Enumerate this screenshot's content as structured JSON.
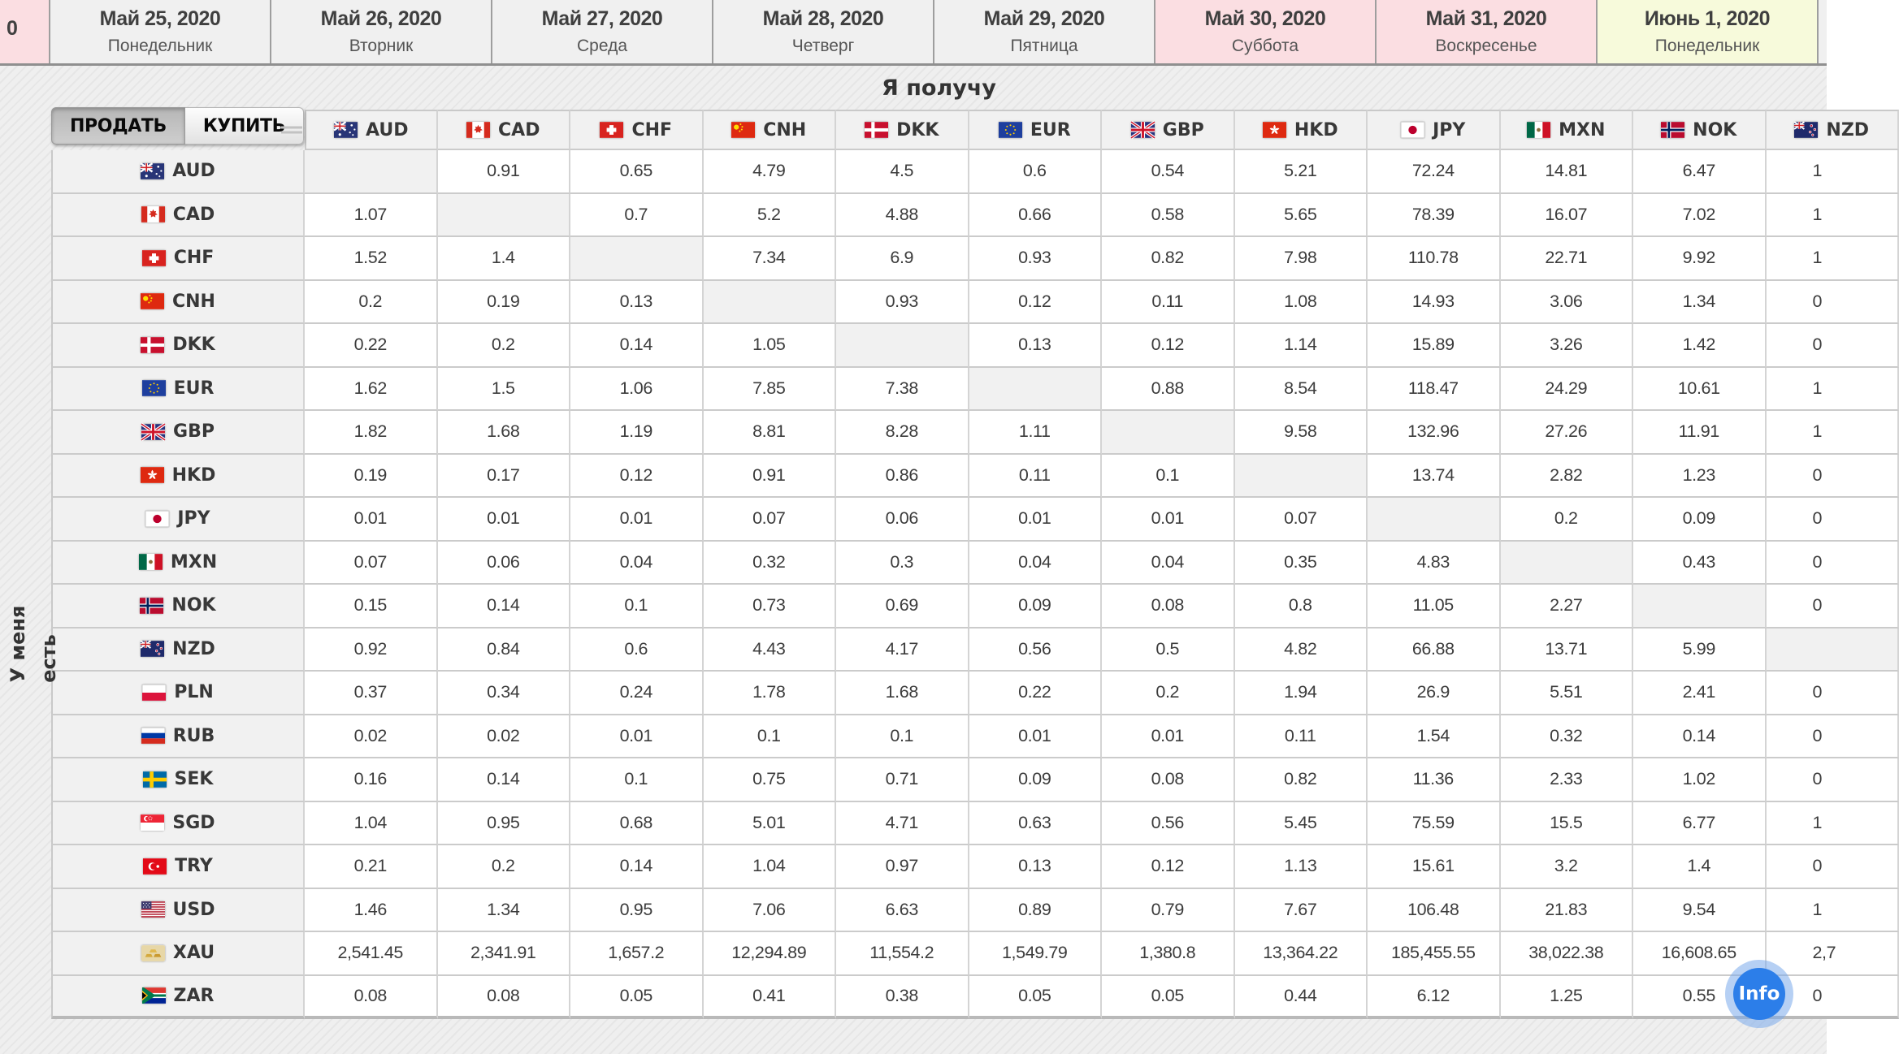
{
  "date_bar": {
    "cells": [
      {
        "date": "0",
        "weekday": "",
        "type": "cut-weekend"
      },
      {
        "date": "Май 25, 2020",
        "weekday": "Понедельник",
        "type": "normal"
      },
      {
        "date": "Май 26, 2020",
        "weekday": "Вторник",
        "type": "normal"
      },
      {
        "date": "Май 27, 2020",
        "weekday": "Среда",
        "type": "normal"
      },
      {
        "date": "Май 28, 2020",
        "weekday": "Четверг",
        "type": "normal"
      },
      {
        "date": "Май 29, 2020",
        "weekday": "Пятница",
        "type": "normal"
      },
      {
        "date": "Май 30, 2020",
        "weekday": "Суббота",
        "type": "weekend"
      },
      {
        "date": "Май 31, 2020",
        "weekday": "Воскресенье",
        "type": "weekend"
      },
      {
        "date": "Июнь 1, 2020",
        "weekday": "Понедельник",
        "type": "today"
      },
      {
        "date": "",
        "weekday": "",
        "type": "cut-next"
      }
    ]
  },
  "axis": {
    "receive_label": "Я получу",
    "have_label_line1": "У меня",
    "have_label_line2": "есть"
  },
  "controls": {
    "sell_label": "ПРОДАТЬ",
    "buy_label": "КУПИТЬ",
    "active": "ПРОДАТЬ"
  },
  "info_button": {
    "label": "Info"
  },
  "colors": {
    "weekend_pink": "#fbdee2",
    "today_yellow": "#f7fadb",
    "info_blue": "#2c7ee9",
    "grid_gray": "#f1f1f1"
  },
  "table": {
    "columns": [
      "AUD",
      "CAD",
      "CHF",
      "CNH",
      "DKK",
      "EUR",
      "GBP",
      "HKD",
      "JPY",
      "MXN",
      "NOK"
    ],
    "clipped_column": "NZD",
    "rows": [
      {
        "code": "AUD",
        "values": [
          null,
          "0.91",
          "0.65",
          "4.79",
          "4.5",
          "0.6",
          "0.54",
          "5.21",
          "72.24",
          "14.81",
          "6.47"
        ],
        "clipped": "1"
      },
      {
        "code": "CAD",
        "values": [
          "1.07",
          null,
          "0.7",
          "5.2",
          "4.88",
          "0.66",
          "0.58",
          "5.65",
          "78.39",
          "16.07",
          "7.02"
        ],
        "clipped": "1"
      },
      {
        "code": "CHF",
        "values": [
          "1.52",
          "1.4",
          null,
          "7.34",
          "6.9",
          "0.93",
          "0.82",
          "7.98",
          "110.78",
          "22.71",
          "9.92"
        ],
        "clipped": "1"
      },
      {
        "code": "CNH",
        "values": [
          "0.2",
          "0.19",
          "0.13",
          null,
          "0.93",
          "0.12",
          "0.11",
          "1.08",
          "14.93",
          "3.06",
          "1.34"
        ],
        "clipped": "0"
      },
      {
        "code": "DKK",
        "values": [
          "0.22",
          "0.2",
          "0.14",
          "1.05",
          null,
          "0.13",
          "0.12",
          "1.14",
          "15.89",
          "3.26",
          "1.42"
        ],
        "clipped": "0"
      },
      {
        "code": "EUR",
        "values": [
          "1.62",
          "1.5",
          "1.06",
          "7.85",
          "7.38",
          null,
          "0.88",
          "8.54",
          "118.47",
          "24.29",
          "10.61"
        ],
        "clipped": "1"
      },
      {
        "code": "GBP",
        "values": [
          "1.82",
          "1.68",
          "1.19",
          "8.81",
          "8.28",
          "1.11",
          null,
          "9.58",
          "132.96",
          "27.26",
          "11.91"
        ],
        "clipped": "1"
      },
      {
        "code": "HKD",
        "values": [
          "0.19",
          "0.17",
          "0.12",
          "0.91",
          "0.86",
          "0.11",
          "0.1",
          null,
          "13.74",
          "2.82",
          "1.23"
        ],
        "clipped": "0"
      },
      {
        "code": "JPY",
        "values": [
          "0.01",
          "0.01",
          "0.01",
          "0.07",
          "0.06",
          "0.01",
          "0.01",
          "0.07",
          null,
          "0.2",
          "0.09"
        ],
        "clipped": "0"
      },
      {
        "code": "MXN",
        "values": [
          "0.07",
          "0.06",
          "0.04",
          "0.32",
          "0.3",
          "0.04",
          "0.04",
          "0.35",
          "4.83",
          null,
          "0.43"
        ],
        "clipped": "0"
      },
      {
        "code": "NOK",
        "values": [
          "0.15",
          "0.14",
          "0.1",
          "0.73",
          "0.69",
          "0.09",
          "0.08",
          "0.8",
          "11.05",
          "2.27",
          null
        ],
        "clipped": "0"
      },
      {
        "code": "NZD",
        "values": [
          "0.92",
          "0.84",
          "0.6",
          "4.43",
          "4.17",
          "0.56",
          "0.5",
          "4.82",
          "66.88",
          "13.71",
          "5.99"
        ],
        "clipped": null
      },
      {
        "code": "PLN",
        "values": [
          "0.37",
          "0.34",
          "0.24",
          "1.78",
          "1.68",
          "0.22",
          "0.2",
          "1.94",
          "26.9",
          "5.51",
          "2.41"
        ],
        "clipped": "0"
      },
      {
        "code": "RUB",
        "values": [
          "0.02",
          "0.02",
          "0.01",
          "0.1",
          "0.1",
          "0.01",
          "0.01",
          "0.11",
          "1.54",
          "0.32",
          "0.14"
        ],
        "clipped": "0"
      },
      {
        "code": "SEK",
        "values": [
          "0.16",
          "0.14",
          "0.1",
          "0.75",
          "0.71",
          "0.09",
          "0.08",
          "0.82",
          "11.36",
          "2.33",
          "1.02"
        ],
        "clipped": "0"
      },
      {
        "code": "SGD",
        "values": [
          "1.04",
          "0.95",
          "0.68",
          "5.01",
          "4.71",
          "0.63",
          "0.56",
          "5.45",
          "75.59",
          "15.5",
          "6.77"
        ],
        "clipped": "1"
      },
      {
        "code": "TRY",
        "values": [
          "0.21",
          "0.2",
          "0.14",
          "1.04",
          "0.97",
          "0.13",
          "0.12",
          "1.13",
          "15.61",
          "3.2",
          "1.4"
        ],
        "clipped": "0"
      },
      {
        "code": "USD",
        "values": [
          "1.46",
          "1.34",
          "0.95",
          "7.06",
          "6.63",
          "0.89",
          "0.79",
          "7.67",
          "106.48",
          "21.83",
          "9.54"
        ],
        "clipped": "1"
      },
      {
        "code": "XAU",
        "values": [
          "2,541.45",
          "2,341.91",
          "1,657.2",
          "12,294.89",
          "11,554.2",
          "1,549.79",
          "1,380.8",
          "13,364.22",
          "185,455.55",
          "38,022.38",
          "16,608.65"
        ],
        "clipped": "2,7"
      },
      {
        "code": "ZAR",
        "values": [
          "0.08",
          "0.08",
          "0.05",
          "0.41",
          "0.38",
          "0.05",
          "0.05",
          "0.44",
          "6.12",
          "1.25",
          "0.55"
        ],
        "clipped": "0"
      }
    ]
  }
}
